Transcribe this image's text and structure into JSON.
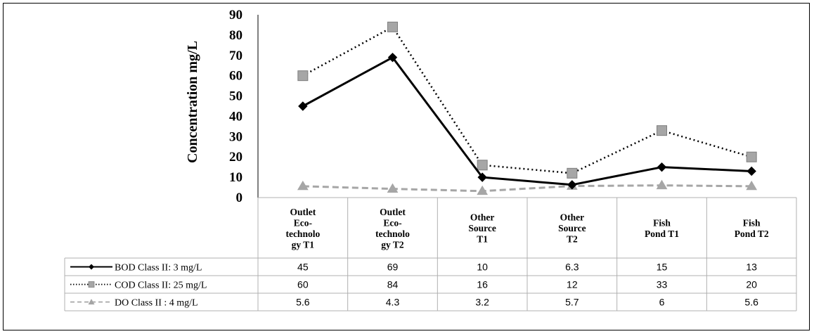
{
  "chart_data": {
    "type": "line",
    "ylabel": "Concentration mg/L",
    "ylim": [
      0,
      90
    ],
    "yticks": [
      0,
      10,
      20,
      30,
      40,
      50,
      60,
      70,
      80,
      90
    ],
    "categories": [
      [
        "Outlet",
        "Eco-",
        "technolo",
        "gy  T1"
      ],
      [
        "Outlet",
        "Eco-",
        "technolo",
        "gy  T2"
      ],
      [
        "Other",
        "Source",
        "T1"
      ],
      [
        "Other",
        "Source",
        "T2"
      ],
      [
        "Fish",
        "Pond T1"
      ],
      [
        "Fish",
        "Pond T2"
      ]
    ],
    "series": [
      {
        "name": "BOD Class II: 3 mg/L",
        "values": [
          "45",
          "69",
          "10",
          "6.3",
          "15",
          "13"
        ],
        "color": "#000000",
        "style": "solid",
        "marker": "diamond"
      },
      {
        "name": "COD Class II: 25 mg/L",
        "values": [
          "60",
          "84",
          "16",
          "12",
          "33",
          "20"
        ],
        "color": "#000000",
        "marker_color": "#a6a6a6",
        "style": "dotted",
        "marker": "square"
      },
      {
        "name": "DO Class II : 4 mg/L",
        "values": [
          "5.6",
          "4.3",
          "3.2",
          "5.7",
          "6",
          "5.6"
        ],
        "color": "#a6a6a6",
        "style": "dashed",
        "marker": "triangle"
      }
    ],
    "grid": false,
    "legend": "data-table"
  }
}
